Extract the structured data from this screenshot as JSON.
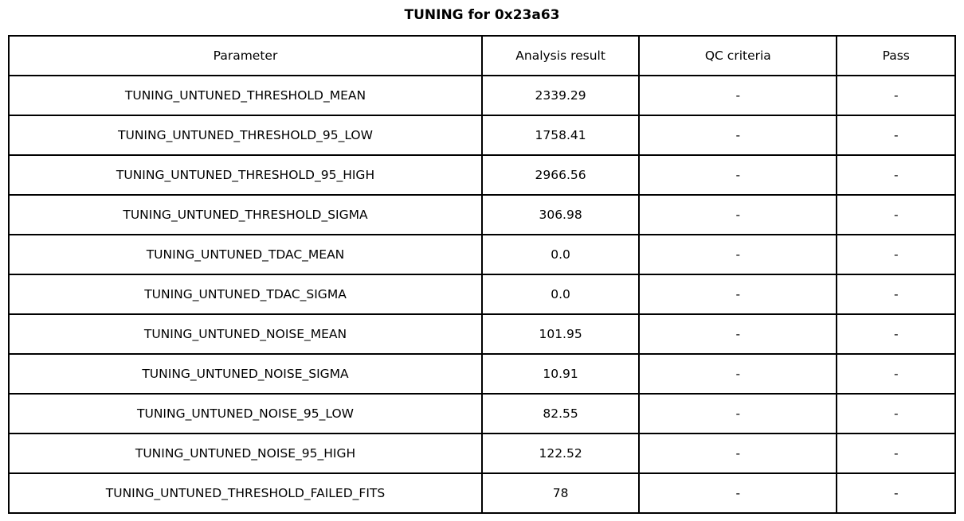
{
  "chart_data": {
    "type": "table",
    "title": "TUNING for 0x23a63",
    "columns": [
      "Parameter",
      "Analysis result",
      "QC criteria",
      "Pass"
    ],
    "rows": [
      [
        "TUNING_UNTUNED_THRESHOLD_MEAN",
        "2339.29",
        "-",
        "-"
      ],
      [
        "TUNING_UNTUNED_THRESHOLD_95_LOW",
        "1758.41",
        "-",
        "-"
      ],
      [
        "TUNING_UNTUNED_THRESHOLD_95_HIGH",
        "2966.56",
        "-",
        "-"
      ],
      [
        "TUNING_UNTUNED_THRESHOLD_SIGMA",
        "306.98",
        "-",
        "-"
      ],
      [
        "TUNING_UNTUNED_TDAC_MEAN",
        "0.0",
        "-",
        "-"
      ],
      [
        "TUNING_UNTUNED_TDAC_SIGMA",
        "0.0",
        "-",
        "-"
      ],
      [
        "TUNING_UNTUNED_NOISE_MEAN",
        "101.95",
        "-",
        "-"
      ],
      [
        "TUNING_UNTUNED_NOISE_SIGMA",
        "10.91",
        "-",
        "-"
      ],
      [
        "TUNING_UNTUNED_NOISE_95_LOW",
        "82.55",
        "-",
        "-"
      ],
      [
        "TUNING_UNTUNED_NOISE_95_HIGH",
        "122.52",
        "-",
        "-"
      ],
      [
        "TUNING_UNTUNED_THRESHOLD_FAILED_FITS",
        "78",
        "-",
        "-"
      ]
    ],
    "layout": {
      "legend": "none",
      "grid": "full-cell-borders",
      "border_color": "#000000",
      "background_color": "#ffffff",
      "text_color": "#000000",
      "title_position": "top-center"
    }
  }
}
